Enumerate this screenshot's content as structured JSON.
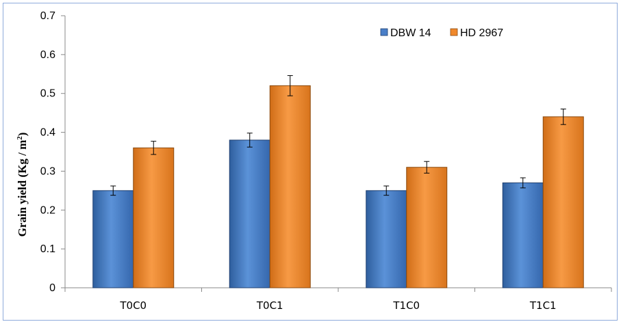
{
  "chart_data": {
    "type": "bar",
    "title": "",
    "xlabel": "",
    "ylabel": "Grain yield (Kg / m2)",
    "ylabel_main": "Grain yield (Kg / m",
    "ylabel_sup": "2",
    "ylabel_tail": ")",
    "ylim": [
      0,
      0.7
    ],
    "yticks": [
      0,
      0.1,
      0.2,
      0.3,
      0.4,
      0.5,
      0.6,
      0.7
    ],
    "ytick_labels": [
      "0",
      "0.1",
      "0.2",
      "0.3",
      "0.4",
      "0.5",
      "0.6",
      "0.7"
    ],
    "categories": [
      "T0C0",
      "T0C1",
      "T1C0",
      "T1C1"
    ],
    "series": [
      {
        "name": "DBW 14",
        "color": "#4a7fc8",
        "values": [
          0.25,
          0.38,
          0.25,
          0.27
        ],
        "errors": [
          0.012,
          0.018,
          0.012,
          0.013
        ]
      },
      {
        "name": "HD 2967",
        "color": "#f0882b",
        "values": [
          0.36,
          0.52,
          0.31,
          0.44
        ],
        "errors": [
          0.017,
          0.026,
          0.015,
          0.02
        ]
      }
    ],
    "legend_position": "top-right",
    "grid": false
  }
}
